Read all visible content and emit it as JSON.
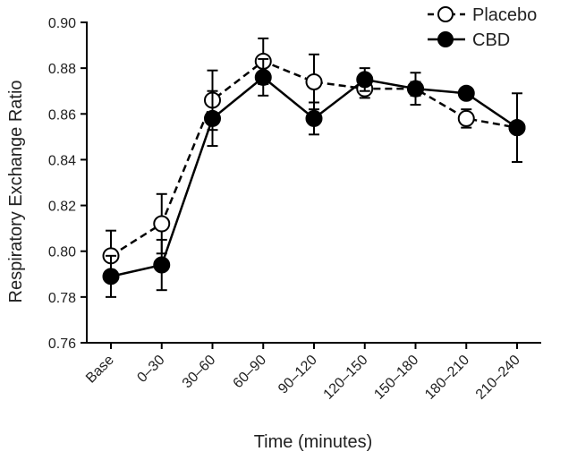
{
  "chart_data": {
    "type": "line",
    "xlabel": "Time (minutes)",
    "ylabel": "Respiratory Exchange Ratio",
    "categories": [
      "Base",
      "0–30",
      "30–60",
      "60–90",
      "90–120",
      "120–150",
      "150–180",
      "180–210",
      "210–240"
    ],
    "ylim": [
      0.76,
      0.9
    ],
    "yticks": [
      "0.76",
      "0.78",
      "0.80",
      "0.82",
      "0.84",
      "0.86",
      "0.88",
      "0.90"
    ],
    "grid": false,
    "legend_position": "top-right",
    "series": [
      {
        "name": "Placebo",
        "marker": "open-circle",
        "line_style": "dashed",
        "color": "#000000",
        "values": [
          0.798,
          0.812,
          0.866,
          0.883,
          0.874,
          0.871,
          0.871,
          0.858,
          0.854
        ],
        "errors": [
          0.011,
          0.013,
          0.013,
          0.01,
          0.012,
          0.004,
          0.003,
          0.004,
          0.0
        ]
      },
      {
        "name": "CBD",
        "marker": "filled-circle",
        "line_style": "solid",
        "color": "#000000",
        "values": [
          0.789,
          0.794,
          0.858,
          0.876,
          0.858,
          0.875,
          0.871,
          0.869,
          0.854
        ],
        "errors": [
          0.009,
          0.011,
          0.012,
          0.008,
          0.007,
          0.005,
          0.007,
          0.0,
          0.015
        ]
      }
    ]
  }
}
